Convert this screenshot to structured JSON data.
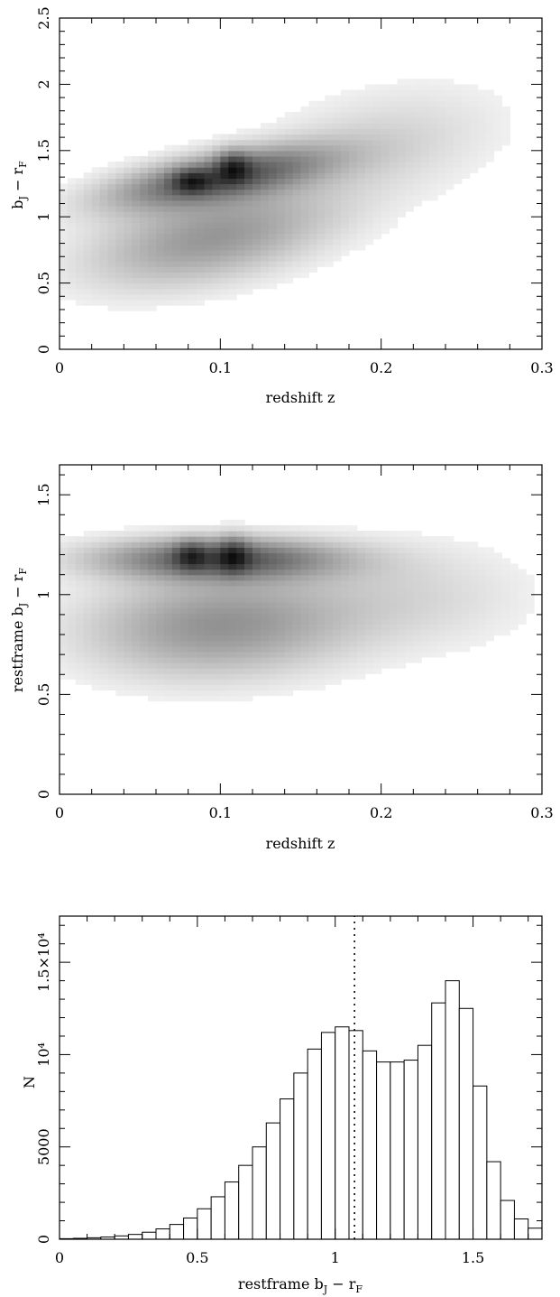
{
  "chart_data": [
    {
      "type": "heatmap",
      "xlabel": "redshift z",
      "ylabel": "b_J − r_F",
      "xlim": [
        0,
        0.3
      ],
      "ylim": [
        0,
        2.5
      ],
      "xticks": [
        {
          "value": 0,
          "label": "0"
        },
        {
          "value": 0.1,
          "label": "0.1"
        },
        {
          "value": 0.2,
          "label": "0.2"
        },
        {
          "value": 0.3,
          "label": "0.3"
        }
      ],
      "yticks": [
        {
          "value": 0,
          "label": "0"
        },
        {
          "value": 0.5,
          "label": "0.5"
        },
        {
          "value": 1,
          "label": "1"
        },
        {
          "value": 1.5,
          "label": "1.5"
        },
        {
          "value": 2,
          "label": "2"
        },
        {
          "value": 2.5,
          "label": "2.5"
        }
      ],
      "density_components": [
        {
          "x_center": 0.1,
          "y_center": 1.3,
          "x_spread": 0.045,
          "y_spread": 0.12,
          "slope": 2.0,
          "weight": 1.0
        },
        {
          "x_center": 0.095,
          "y_center": 0.85,
          "x_spread": 0.05,
          "y_spread": 0.22,
          "slope": 2.2,
          "weight": 0.55
        },
        {
          "x_center": 0.082,
          "y_center": 1.27,
          "x_spread": 0.008,
          "y_spread": 0.06,
          "slope": 0,
          "weight": 0.55
        },
        {
          "x_center": 0.108,
          "y_center": 1.38,
          "x_spread": 0.007,
          "y_spread": 0.08,
          "slope": 0,
          "weight": 0.6
        },
        {
          "x_center": 0.2,
          "y_center": 1.55,
          "x_spread": 0.05,
          "y_spread": 0.28,
          "slope": 2.0,
          "weight": 0.18
        }
      ]
    },
    {
      "type": "heatmap",
      "xlabel": "redshift z",
      "ylabel": "restframe b_J − r_F",
      "xlim": [
        0,
        0.3
      ],
      "ylim": [
        0,
        1.65
      ],
      "xticks": [
        {
          "value": 0,
          "label": "0"
        },
        {
          "value": 0.1,
          "label": "0.1"
        },
        {
          "value": 0.2,
          "label": "0.2"
        },
        {
          "value": 0.3,
          "label": "0.3"
        }
      ],
      "yticks": [
        {
          "value": 0,
          "label": "0"
        },
        {
          "value": 0.5,
          "label": "0.5"
        },
        {
          "value": 1,
          "label": "1"
        },
        {
          "value": 1.5,
          "label": "1.5"
        }
      ],
      "density_components": [
        {
          "x_center": 0.1,
          "y_center": 1.18,
          "x_spread": 0.05,
          "y_spread": 0.07,
          "slope": 0,
          "weight": 1.0
        },
        {
          "x_center": 0.1,
          "y_center": 0.85,
          "x_spread": 0.055,
          "y_spread": 0.17,
          "slope": 0.3,
          "weight": 0.6
        },
        {
          "x_center": 0.082,
          "y_center": 1.2,
          "x_spread": 0.007,
          "y_spread": 0.05,
          "slope": 0,
          "weight": 0.55
        },
        {
          "x_center": 0.108,
          "y_center": 1.2,
          "x_spread": 0.007,
          "y_spread": 0.06,
          "slope": 0,
          "weight": 0.6
        },
        {
          "x_center": 0.22,
          "y_center": 1.0,
          "x_spread": 0.05,
          "y_spread": 0.18,
          "slope": 0,
          "weight": 0.16
        }
      ]
    },
    {
      "type": "bar",
      "xlabel": "restframe b_J − r_F",
      "ylabel": "N",
      "xlim": [
        0,
        1.75
      ],
      "ylim": [
        0,
        17500
      ],
      "bin_width": 0.05,
      "bin_starts": [
        0.0,
        0.05,
        0.1,
        0.15,
        0.2,
        0.25,
        0.3,
        0.35,
        0.4,
        0.45,
        0.5,
        0.55,
        0.6,
        0.65,
        0.7,
        0.75,
        0.8,
        0.85,
        0.9,
        0.95,
        1.0,
        1.05,
        1.1,
        1.15,
        1.2,
        1.25,
        1.3,
        1.35,
        1.4,
        1.45,
        1.5,
        1.55,
        1.6,
        1.65,
        1.7
      ],
      "values": [
        30,
        50,
        80,
        120,
        180,
        260,
        380,
        560,
        800,
        1150,
        1650,
        2300,
        3100,
        4000,
        5000,
        6300,
        7600,
        9000,
        10300,
        11200,
        11500,
        11300,
        10200,
        9600,
        9600,
        9700,
        10500,
        12800,
        14000,
        12500,
        8300,
        4200,
        2100,
        1100,
        600
      ],
      "dividing_line_x": 1.07,
      "xticks": [
        {
          "value": 0,
          "label": "0"
        },
        {
          "value": 0.5,
          "label": "0.5"
        },
        {
          "value": 1,
          "label": "1"
        },
        {
          "value": 1.5,
          "label": "1.5"
        }
      ],
      "yticks": [
        {
          "value": 0,
          "label": "0"
        },
        {
          "value": 5000,
          "label": "5000"
        },
        {
          "value": 10000,
          "label": "10⁴"
        },
        {
          "value": 15000,
          "label": "1.5×10⁴"
        }
      ]
    }
  ]
}
